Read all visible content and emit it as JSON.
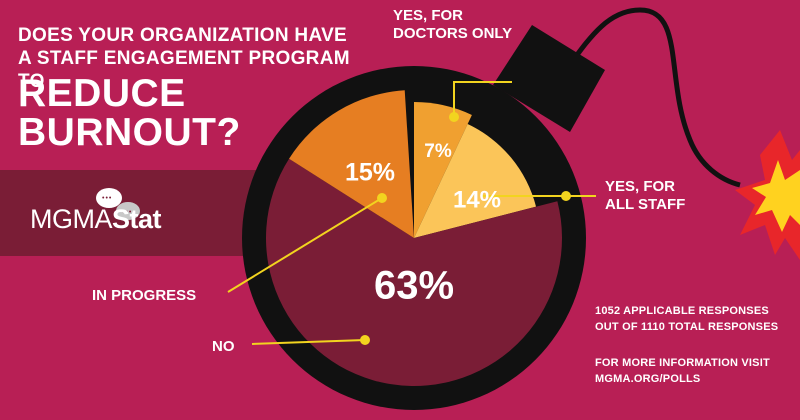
{
  "heading": {
    "question": "DOES YOUR ORGANIZATION HAVE A STAFF ENGAGEMENT PROGRAM TO",
    "emphasis": "REDUCE BURNOUT?"
  },
  "logo": {
    "part1": "MGMA",
    "part2": "Stat",
    "bubble_glyph": "•••"
  },
  "notes": {
    "responses": "1052 APPLICABLE RESPONSES OUT OF 1110 TOTAL RESPONSES",
    "info": "FOR MORE INFORMATION VISIT MGMA.ORG/POLLS"
  },
  "colors": {
    "background": "#b81f55",
    "band": "#7a1d36",
    "bomb": "#111111",
    "no": "#7a1d36",
    "in_progress": "#e67e22",
    "doctors_only": "#f0a030",
    "all_staff": "#fbc559",
    "leader": "#f2d41f",
    "spark_outer": "#e8262a",
    "spark_inner": "#ffd21f"
  },
  "chart_data": {
    "type": "pie",
    "title": "DOES YOUR ORGANIZATION HAVE A STAFF ENGAGEMENT PROGRAM TO REDUCE BURNOUT?",
    "slices": [
      {
        "key": "doctors_only",
        "name": "YES, FOR DOCTORS ONLY",
        "value": 7,
        "label": "7%"
      },
      {
        "key": "all_staff",
        "name": "YES, FOR ALL STAFF",
        "value": 14,
        "label": "14%"
      },
      {
        "key": "no",
        "name": "NO",
        "value": 63,
        "label": "63%"
      },
      {
        "key": "in_progress",
        "name": "IN PROGRESS",
        "value": 15,
        "label": "15%"
      }
    ]
  }
}
